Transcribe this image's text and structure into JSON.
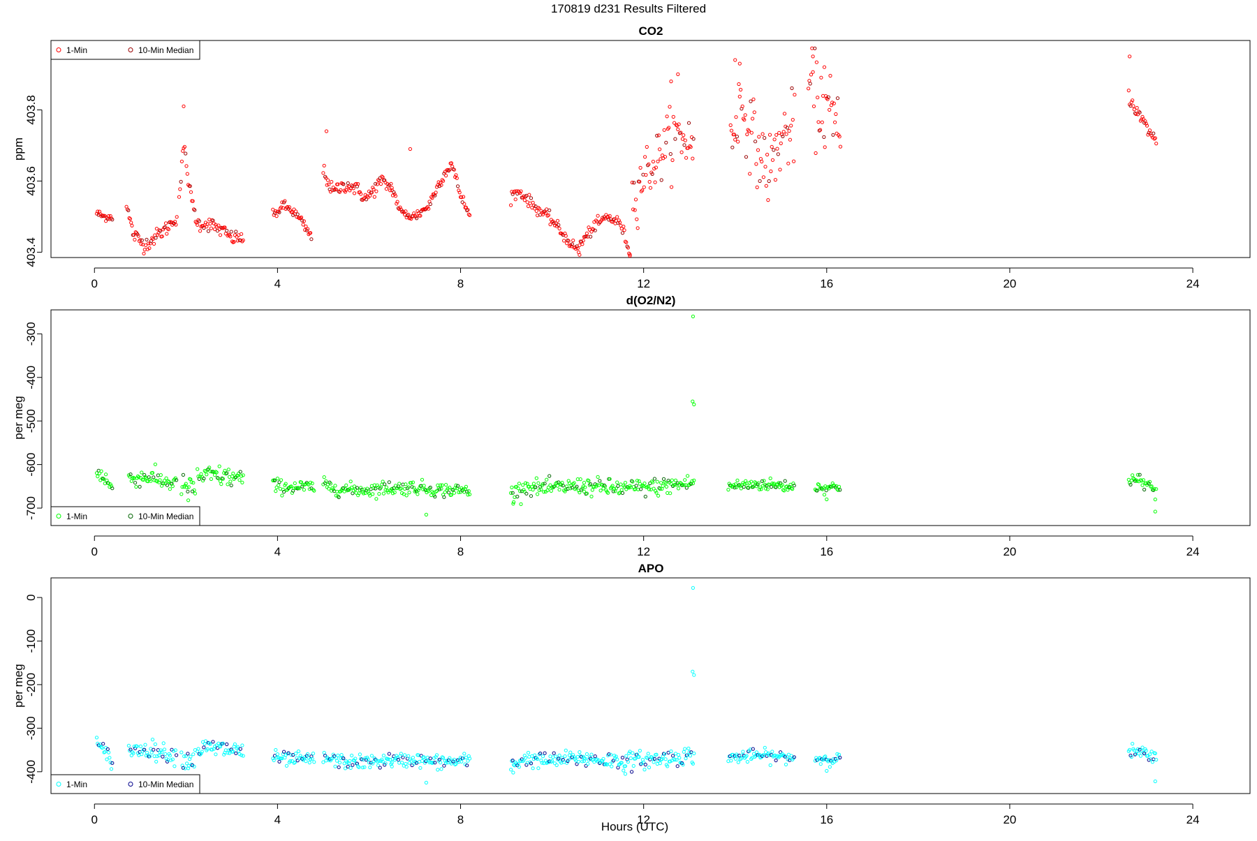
{
  "page_title": "170819   d231   Results Filtered",
  "xlabel": "Hours (UTC)",
  "chart_data": [
    {
      "type": "scatter",
      "title": "CO2",
      "ylabel": "ppm",
      "xlim": [
        -0.95,
        25.25
      ],
      "ylim": [
        403.385,
        403.995
      ],
      "x_ticks": [
        0,
        4,
        8,
        12,
        16,
        20,
        24
      ],
      "y_ticks": [
        403.4,
        403.6,
        403.8
      ],
      "y_tick_labels": [
        "403.4",
        "403.6",
        "403.8"
      ],
      "legend": {
        "position": "top-left",
        "entries": [
          "1-Min",
          "10-Min Median"
        ]
      },
      "colors": {
        "one_min": "#ff0000",
        "median": "#990000"
      },
      "segments": [
        {
          "x_start": 0.05,
          "x_end": 0.4,
          "knots": [
            [
              0.05,
              403.51
            ],
            [
              0.2,
              403.5
            ],
            [
              0.4,
              403.5
            ]
          ],
          "noise": 0.006
        },
        {
          "x_start": 0.7,
          "x_end": 1.8,
          "knots": [
            [
              0.7,
              403.53
            ],
            [
              0.85,
              403.45
            ],
            [
              1.1,
              403.42
            ],
            [
              1.3,
              403.44
            ],
            [
              1.6,
              403.47
            ],
            [
              1.8,
              403.5
            ]
          ],
          "noise": 0.01
        },
        {
          "x_start": 1.85,
          "x_end": 3.25,
          "knots": [
            [
              1.85,
              403.55
            ],
            [
              1.95,
              403.7
            ],
            [
              2.1,
              403.56
            ],
            [
              2.25,
              403.48
            ],
            [
              2.5,
              403.48
            ],
            [
              2.8,
              403.46
            ],
            [
              3.0,
              403.44
            ],
            [
              3.25,
              403.44
            ]
          ],
          "noise": 0.01
        },
        {
          "x_start": 3.9,
          "x_end": 4.75,
          "knots": [
            [
              3.9,
              403.5
            ],
            [
              4.1,
              403.53
            ],
            [
              4.3,
              403.52
            ],
            [
              4.5,
              403.49
            ],
            [
              4.75,
              403.44
            ]
          ],
          "noise": 0.008
        },
        {
          "x_start": 5.0,
          "x_end": 6.5,
          "knots": [
            [
              5.0,
              403.63
            ],
            [
              5.2,
              403.57
            ],
            [
              5.5,
              403.59
            ],
            [
              5.7,
              403.58
            ],
            [
              5.95,
              403.55
            ],
            [
              6.25,
              403.6
            ],
            [
              6.5,
              403.58
            ]
          ],
          "noise": 0.01
        },
        {
          "x_start": 6.5,
          "x_end": 8.2,
          "knots": [
            [
              6.5,
              403.58
            ],
            [
              6.7,
              403.51
            ],
            [
              7.0,
              403.5
            ],
            [
              7.3,
              403.53
            ],
            [
              7.55,
              403.6
            ],
            [
              7.8,
              403.65
            ],
            [
              8.0,
              403.56
            ],
            [
              8.2,
              403.5
            ]
          ],
          "noise": 0.008
        },
        {
          "x_start": 9.1,
          "x_end": 10.6,
          "knots": [
            [
              9.1,
              403.56
            ],
            [
              9.3,
              403.57
            ],
            [
              9.6,
              403.53
            ],
            [
              10.0,
              403.49
            ],
            [
              10.3,
              403.44
            ],
            [
              10.6,
              403.4
            ]
          ],
          "noise": 0.008
        },
        {
          "x_start": 10.6,
          "x_end": 11.7,
          "knots": [
            [
              10.6,
              403.42
            ],
            [
              10.9,
              403.47
            ],
            [
              11.2,
              403.5
            ],
            [
              11.5,
              403.48
            ],
            [
              11.7,
              403.4
            ]
          ],
          "noise": 0.008
        },
        {
          "x_start": 11.75,
          "x_end": 13.1,
          "knots": [
            [
              11.75,
              403.55
            ],
            [
              12.0,
              403.62
            ],
            [
              12.3,
              403.66
            ],
            [
              12.5,
              403.71
            ],
            [
              12.75,
              403.73
            ],
            [
              13.1,
              403.7
            ]
          ],
          "noise": 0.04
        },
        {
          "x_start": 13.9,
          "x_end": 15.3,
          "knots": [
            [
              13.9,
              403.71
            ],
            [
              14.1,
              403.82
            ],
            [
              14.3,
              403.76
            ],
            [
              14.5,
              403.68
            ],
            [
              14.75,
              403.63
            ],
            [
              15.0,
              403.72
            ],
            [
              15.3,
              403.75
            ]
          ],
          "noise": 0.05
        },
        {
          "x_start": 15.6,
          "x_end": 16.3,
          "knots": [
            [
              15.6,
              403.88
            ],
            [
              15.8,
              403.82
            ],
            [
              16.0,
              403.8
            ],
            [
              16.3,
              403.72
            ]
          ],
          "noise": 0.06
        },
        {
          "x_start": 22.6,
          "x_end": 23.2,
          "knots": [
            [
              22.6,
              403.84
            ],
            [
              22.8,
              403.79
            ],
            [
              23.0,
              403.75
            ],
            [
              23.2,
              403.71
            ]
          ],
          "noise": 0.01
        }
      ],
      "outliers": [
        [
          1.95,
          403.81
        ],
        [
          5.07,
          403.74
        ],
        [
          6.9,
          403.69
        ],
        [
          11.7,
          403.39
        ],
        [
          12.6,
          403.88
        ],
        [
          12.75,
          403.9
        ],
        [
          14.0,
          403.94
        ],
        [
          14.1,
          403.93
        ],
        [
          15.7,
          403.95
        ],
        [
          15.95,
          403.92
        ],
        [
          22.62,
          403.95
        ]
      ]
    },
    {
      "type": "scatter",
      "title": "d(O2/N2)",
      "ylabel": "per meg",
      "xlim": [
        -0.95,
        25.25
      ],
      "ylim": [
        -740,
        -245
      ],
      "x_ticks": [
        0,
        4,
        8,
        12,
        16,
        20,
        24
      ],
      "y_ticks": [
        -700,
        -600,
        -500,
        -400,
        -300
      ],
      "y_tick_labels": [
        "-700",
        "-600",
        "-500",
        "-400",
        "-300"
      ],
      "legend": {
        "position": "bottom-left",
        "entries": [
          "1-Min",
          "10-Min Median"
        ]
      },
      "colors": {
        "one_min": "#00ff00",
        "median": "#006400"
      },
      "segments": [
        {
          "x_start": 0.05,
          "x_end": 0.4,
          "knots": [
            [
              0.05,
              -615
            ],
            [
              0.2,
              -628
            ],
            [
              0.4,
              -655
            ]
          ],
          "noise": 10
        },
        {
          "x_start": 0.75,
          "x_end": 1.8,
          "knots": [
            [
              0.75,
              -632
            ],
            [
              1.2,
              -628
            ],
            [
              1.5,
              -638
            ],
            [
              1.8,
              -645
            ]
          ],
          "noise": 10
        },
        {
          "x_start": 1.9,
          "x_end": 2.2,
          "knots": [
            [
              1.9,
              -648
            ],
            [
              2.2,
              -655
            ]
          ],
          "noise": 12
        },
        {
          "x_start": 2.25,
          "x_end": 3.25,
          "knots": [
            [
              2.25,
              -628
            ],
            [
              2.6,
              -625
            ],
            [
              3.0,
              -630
            ],
            [
              3.25,
              -632
            ]
          ],
          "noise": 12
        },
        {
          "x_start": 3.9,
          "x_end": 4.8,
          "knots": [
            [
              3.9,
              -648
            ],
            [
              4.3,
              -652
            ],
            [
              4.8,
              -652
            ]
          ],
          "noise": 8
        },
        {
          "x_start": 5.0,
          "x_end": 6.5,
          "knots": [
            [
              5.0,
              -648
            ],
            [
              5.5,
              -658
            ],
            [
              6.0,
              -658
            ],
            [
              6.5,
              -652
            ]
          ],
          "noise": 8
        },
        {
          "x_start": 6.5,
          "x_end": 8.2,
          "knots": [
            [
              6.5,
              -655
            ],
            [
              7.0,
              -652
            ],
            [
              7.5,
              -658
            ],
            [
              8.2,
              -660
            ]
          ],
          "noise": 8
        },
        {
          "x_start": 9.1,
          "x_end": 10.7,
          "knots": [
            [
              9.1,
              -668
            ],
            [
              9.4,
              -650
            ],
            [
              9.9,
              -655
            ],
            [
              10.7,
              -648
            ]
          ],
          "noise": 9
        },
        {
          "x_start": 10.7,
          "x_end": 13.1,
          "knots": [
            [
              10.7,
              -650
            ],
            [
              11.5,
              -655
            ],
            [
              12.2,
              -652
            ],
            [
              13.1,
              -642
            ]
          ],
          "noise": 10
        },
        {
          "x_start": 13.85,
          "x_end": 15.3,
          "knots": [
            [
              13.85,
              -650
            ],
            [
              14.5,
              -645
            ],
            [
              15.3,
              -650
            ]
          ],
          "noise": 7
        },
        {
          "x_start": 15.75,
          "x_end": 16.3,
          "knots": [
            [
              15.75,
              -652
            ],
            [
              16.3,
              -652
            ]
          ],
          "noise": 6
        },
        {
          "x_start": 22.6,
          "x_end": 23.2,
          "knots": [
            [
              22.6,
              -632
            ],
            [
              22.9,
              -640
            ],
            [
              23.2,
              -658
            ]
          ],
          "noise": 8
        }
      ],
      "outliers": [
        [
          13.08,
          -260
        ],
        [
          13.07,
          -455
        ],
        [
          13.1,
          -462
        ],
        [
          2.05,
          -682
        ],
        [
          7.25,
          -715
        ],
        [
          23.18,
          -708
        ],
        [
          16.0,
          -680
        ],
        [
          9.15,
          -690
        ]
      ]
    },
    {
      "type": "scatter",
      "title": "APO",
      "ylabel": "per meg",
      "xlim": [
        -0.95,
        25.25
      ],
      "ylim": [
        -450,
        45
      ],
      "x_ticks": [
        0,
        4,
        8,
        12,
        16,
        20,
        24
      ],
      "y_ticks": [
        -400,
        -300,
        -200,
        -100,
        0
      ],
      "y_tick_labels": [
        "-400",
        "-300",
        "-200",
        "-100",
        "0"
      ],
      "legend": {
        "position": "bottom-left",
        "entries": [
          "1-Min",
          "10-Min Median"
        ]
      },
      "colors": {
        "one_min": "#00ffff",
        "median": "#00008b"
      },
      "segments": [
        {
          "x_start": 0.05,
          "x_end": 0.4,
          "knots": [
            [
              0.05,
              -335
            ],
            [
              0.2,
              -355
            ],
            [
              0.4,
              -375
            ]
          ],
          "noise": 10
        },
        {
          "x_start": 0.75,
          "x_end": 1.8,
          "knots": [
            [
              0.75,
              -352
            ],
            [
              1.2,
              -348
            ],
            [
              1.5,
              -356
            ],
            [
              1.8,
              -362
            ]
          ],
          "noise": 10
        },
        {
          "x_start": 1.9,
          "x_end": 2.2,
          "knots": [
            [
              1.9,
              -368
            ],
            [
              2.2,
              -372
            ]
          ],
          "noise": 12
        },
        {
          "x_start": 2.25,
          "x_end": 3.25,
          "knots": [
            [
              2.25,
              -348
            ],
            [
              2.6,
              -346
            ],
            [
              3.0,
              -350
            ],
            [
              3.25,
              -352
            ]
          ],
          "noise": 12
        },
        {
          "x_start": 3.9,
          "x_end": 4.8,
          "knots": [
            [
              3.9,
              -368
            ],
            [
              4.3,
              -372
            ],
            [
              4.8,
              -372
            ]
          ],
          "noise": 8
        },
        {
          "x_start": 5.0,
          "x_end": 6.5,
          "knots": [
            [
              5.0,
              -368
            ],
            [
              5.5,
              -378
            ],
            [
              6.0,
              -378
            ],
            [
              6.5,
              -372
            ]
          ],
          "noise": 8
        },
        {
          "x_start": 6.5,
          "x_end": 8.2,
          "knots": [
            [
              6.5,
              -375
            ],
            [
              7.0,
              -372
            ],
            [
              7.5,
              -378
            ],
            [
              8.2,
              -375
            ]
          ],
          "noise": 8
        },
        {
          "x_start": 9.1,
          "x_end": 10.7,
          "knots": [
            [
              9.1,
              -385
            ],
            [
              9.4,
              -370
            ],
            [
              9.9,
              -375
            ],
            [
              10.7,
              -368
            ]
          ],
          "noise": 9
        },
        {
          "x_start": 10.7,
          "x_end": 13.1,
          "knots": [
            [
              10.7,
              -370
            ],
            [
              11.5,
              -375
            ],
            [
              12.2,
              -372
            ],
            [
              13.1,
              -362
            ]
          ],
          "noise": 10
        },
        {
          "x_start": 13.85,
          "x_end": 15.3,
          "knots": [
            [
              13.85,
              -368
            ],
            [
              14.5,
              -362
            ],
            [
              15.3,
              -368
            ]
          ],
          "noise": 7
        },
        {
          "x_start": 15.75,
          "x_end": 16.3,
          "knots": [
            [
              15.75,
              -370
            ],
            [
              16.3,
              -370
            ]
          ],
          "noise": 6
        },
        {
          "x_start": 22.6,
          "x_end": 23.2,
          "knots": [
            [
              22.6,
              -352
            ],
            [
              22.9,
              -358
            ],
            [
              23.2,
              -372
            ]
          ],
          "noise": 8
        }
      ],
      "outliers": [
        [
          13.08,
          22
        ],
        [
          13.07,
          -170
        ],
        [
          13.1,
          -178
        ],
        [
          2.05,
          -392
        ],
        [
          7.25,
          -425
        ],
        [
          23.18,
          -422
        ],
        [
          16.0,
          -398
        ],
        [
          9.15,
          -402
        ],
        [
          11.6,
          -405
        ]
      ]
    }
  ]
}
